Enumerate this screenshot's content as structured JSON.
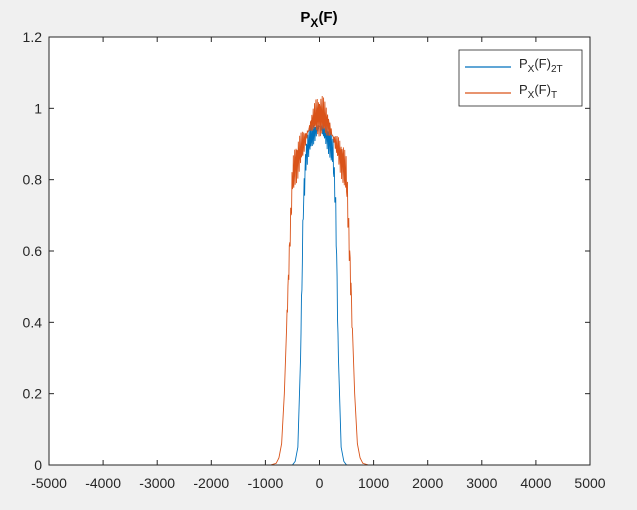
{
  "chart_data": {
    "type": "line",
    "title": {
      "main": "P",
      "sub": "X",
      "tail": "(F)"
    },
    "xlabel": "",
    "ylabel": "",
    "xlim": [
      -5000,
      5000
    ],
    "ylim": [
      0,
      1.2
    ],
    "xticks": [
      -5000,
      -4000,
      -3000,
      -2000,
      -1000,
      0,
      1000,
      2000,
      3000,
      4000,
      5000
    ],
    "xtick_labels": [
      "-5000",
      "-4000",
      "-3000",
      "-2000",
      "-1000",
      "0",
      "1000",
      "2000",
      "3000",
      "4000",
      "5000"
    ],
    "yticks": [
      0,
      0.2,
      0.4,
      0.6,
      0.8,
      1,
      1.2
    ],
    "ytick_labels": [
      "0",
      "0.2",
      "0.4",
      "0.6",
      "0.8",
      "1",
      "1.2"
    ],
    "grid": false,
    "legend_position": "top-right",
    "series": [
      {
        "name": "P_X(F)_2T",
        "legend": {
          "main": "P",
          "sub": "X",
          "tail": "(F)",
          "sub2": "2T"
        },
        "color": "#0072bd",
        "x": [
          -5000,
          -500,
          -450,
          -400,
          -350,
          -300,
          -250,
          -200,
          -150,
          -100,
          -50,
          0,
          50,
          100,
          150,
          200,
          250,
          300,
          350,
          400,
          450,
          500,
          5000
        ],
        "y": [
          0,
          0,
          0.01,
          0.05,
          0.3,
          0.72,
          0.87,
          0.9,
          0.92,
          0.93,
          0.94,
          0.95,
          0.94,
          0.93,
          0.92,
          0.9,
          0.87,
          0.72,
          0.3,
          0.05,
          0.01,
          0,
          0
        ]
      },
      {
        "name": "P_X(F)_T",
        "legend": {
          "main": "P",
          "sub": "X",
          "tail": "(F)",
          "sub2": "T"
        },
        "color": "#d95319",
        "x": [
          -5000,
          -900,
          -800,
          -750,
          -700,
          -650,
          -600,
          -550,
          -500,
          -450,
          -400,
          -350,
          -300,
          -250,
          -200,
          -150,
          -100,
          -50,
          0,
          50,
          100,
          150,
          200,
          250,
          300,
          350,
          400,
          450,
          500,
          550,
          600,
          650,
          700,
          750,
          800,
          900,
          5000
        ],
        "y": [
          0,
          0,
          0.005,
          0.02,
          0.06,
          0.2,
          0.42,
          0.62,
          0.8,
          0.84,
          0.86,
          0.88,
          0.9,
          0.92,
          0.94,
          0.96,
          0.97,
          0.98,
          0.98,
          0.98,
          0.97,
          0.96,
          0.94,
          0.92,
          0.9,
          0.88,
          0.86,
          0.84,
          0.8,
          0.62,
          0.42,
          0.2,
          0.06,
          0.02,
          0.005,
          0,
          0
        ]
      }
    ]
  }
}
